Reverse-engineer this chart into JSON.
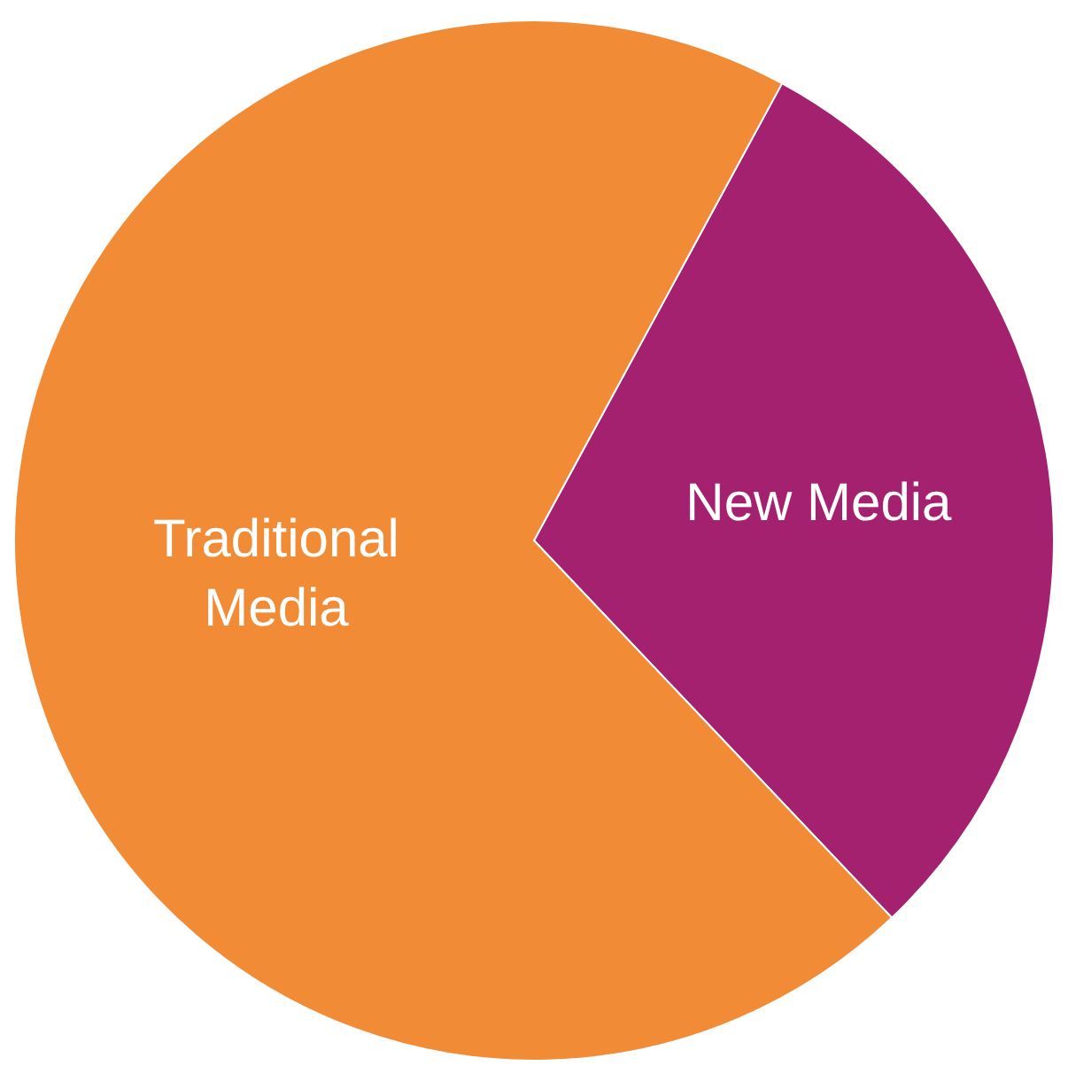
{
  "chart_data": {
    "type": "pie",
    "categories": [
      "New Media",
      "Traditional Media"
    ],
    "values": [
      30,
      70
    ],
    "colors": [
      "#a3216f",
      "#f28b36"
    ],
    "legend": false
  }
}
